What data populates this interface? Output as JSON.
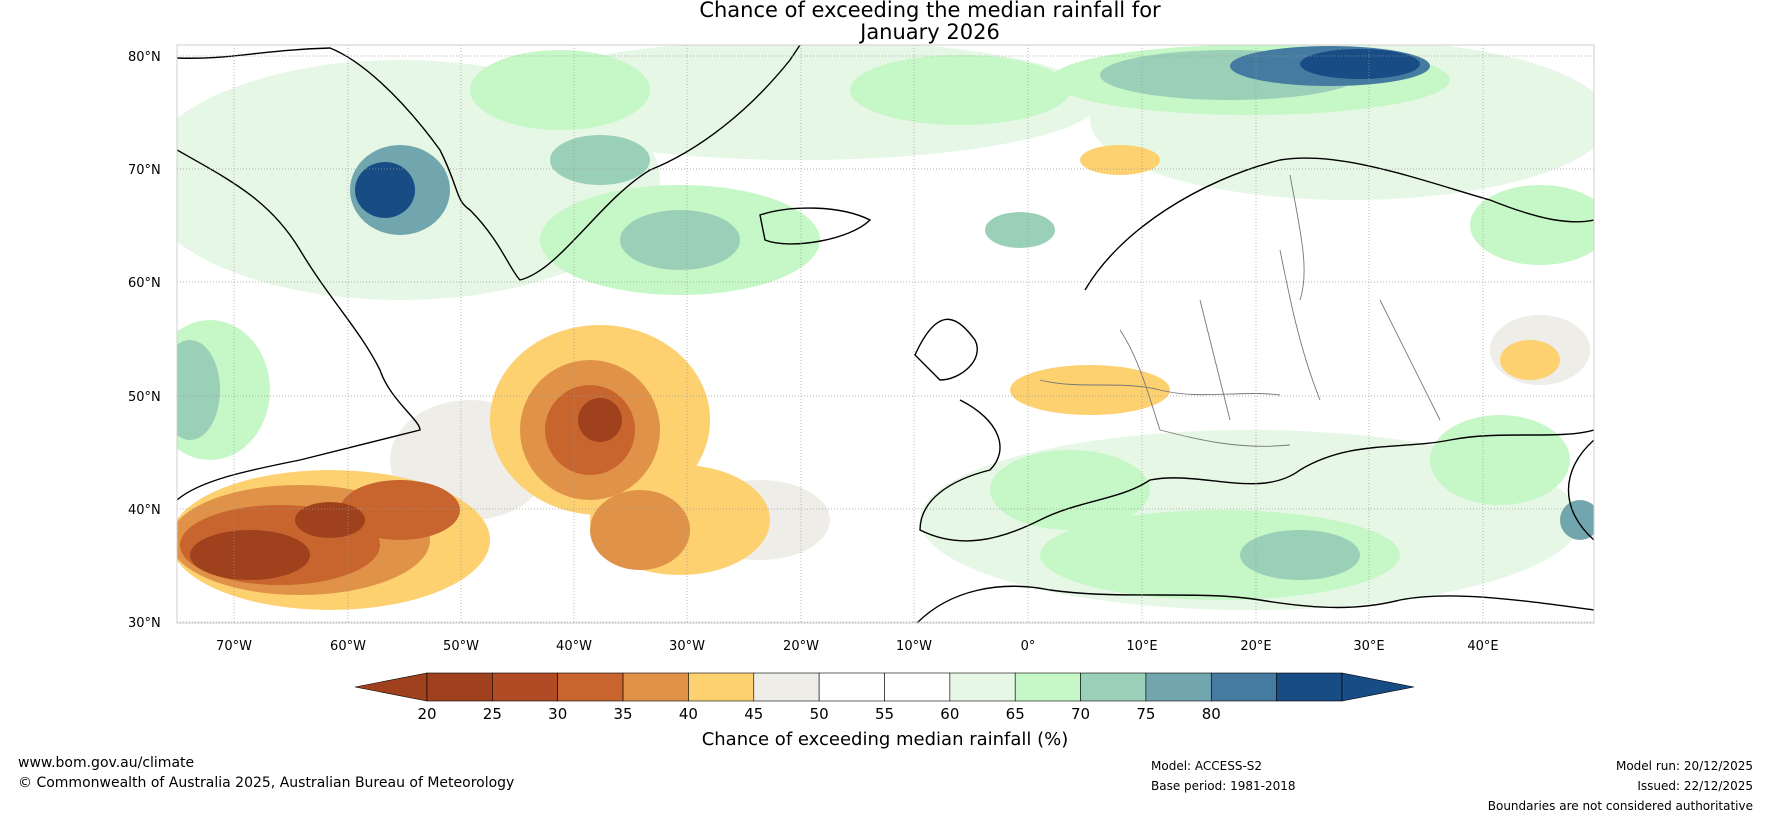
{
  "title": {
    "line1": "Chance of exceeding the median rainfall for",
    "line2": "January 2026"
  },
  "map": {
    "lat_ticks": [
      "80°N",
      "70°N",
      "60°N",
      "50°N",
      "40°N",
      "30°N"
    ],
    "lon_ticks": [
      "70°W",
      "60°W",
      "50°W",
      "40°W",
      "30°W",
      "20°W",
      "10°W",
      "0°",
      "10°E",
      "20°E",
      "30°E",
      "40°E"
    ]
  },
  "colorbar": {
    "label": "Chance of exceeding median rainfall (%)",
    "ticks": [
      "20",
      "25",
      "30",
      "35",
      "40",
      "45",
      "50",
      "55",
      "60",
      "65",
      "70",
      "75",
      "80"
    ],
    "colors": [
      "#a0411e",
      "#b04b26",
      "#c8642e",
      "#e09348",
      "#fdd070",
      "#eeede8",
      "#ffffff",
      "#ffffff",
      "#e6f7e6",
      "#c6f7c6",
      "#9bd0b8",
      "#72a6ae",
      "#457aa1",
      "#174c85"
    ],
    "low_arrow_color": "#a0411e",
    "high_arrow_color": "#174c85"
  },
  "footer": {
    "website": "www.bom.gov.au/climate",
    "copyright": "© Commonwealth of Australia 2025, Australian Bureau of Meteorology",
    "model": "Model: ACCESS-S2",
    "base_period": "Base period: 1981-2018",
    "model_run": "Model run: 20/12/2025",
    "issued": "Issued: 22/12/2025",
    "disclaimer": "Boundaries are not considered authoritative"
  }
}
